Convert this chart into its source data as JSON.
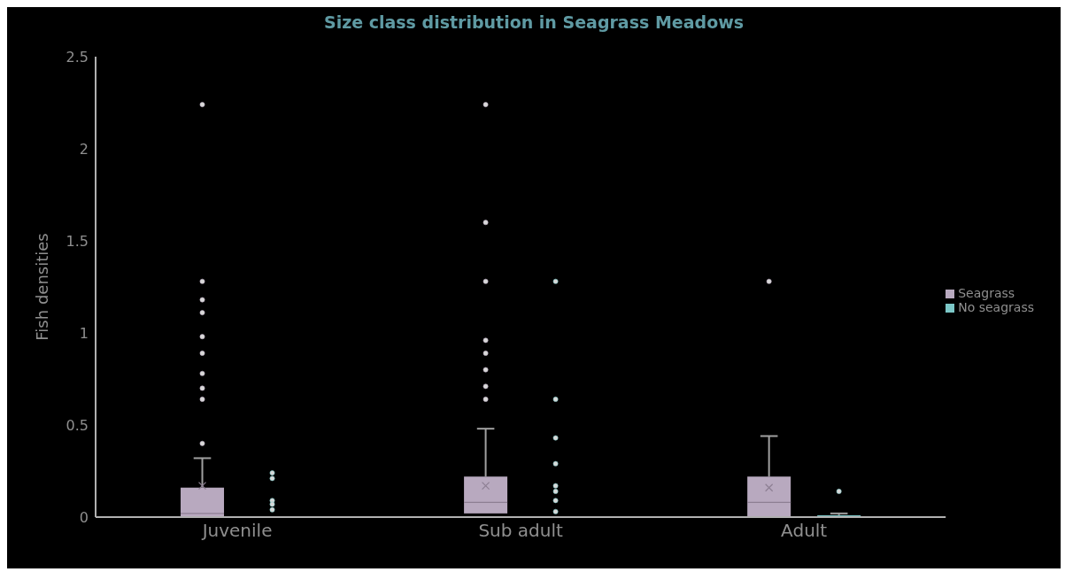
{
  "chart_data": {
    "type": "box",
    "title": "Size class distribution in Seagrass Meadows",
    "ylabel": "Fish densities",
    "categories": [
      "Juvenile",
      "Sub adult",
      "Adult"
    ],
    "ylim": [
      0,
      2.5
    ],
    "yticks": [
      0,
      0.5,
      1,
      1.5,
      2,
      2.5
    ],
    "grid": false,
    "legend": "right",
    "series": [
      {
        "name": "Seagrass",
        "color": "#b8a9bf",
        "boxes": [
          {
            "low": 0,
            "q1": 0,
            "median": 0.02,
            "q3": 0.16,
            "high": 0.32,
            "mean": 0.17,
            "outliers": [
              2.24,
              1.28,
              1.18,
              1.11,
              0.98,
              0.89,
              0.78,
              0.7,
              0.64,
              0.4
            ]
          },
          {
            "low": 0.02,
            "q1": 0.02,
            "median": 0.08,
            "q3": 0.22,
            "high": 0.48,
            "mean": 0.17,
            "outliers": [
              2.24,
              1.6,
              1.28,
              0.96,
              0.89,
              0.8,
              0.71,
              0.64
            ]
          },
          {
            "low": 0,
            "q1": 0,
            "median": 0.08,
            "q3": 0.22,
            "high": 0.44,
            "mean": 0.16,
            "outliers": [
              1.28
            ]
          }
        ]
      },
      {
        "name": "No seagrass",
        "color": "#7cc8c8",
        "boxes": [
          {
            "low": 0,
            "q1": 0,
            "median": 0,
            "q3": 0,
            "high": 0,
            "outliers": [
              0.24,
              0.21,
              0.09,
              0.07,
              0.04
            ]
          },
          {
            "low": 0,
            "q1": 0,
            "median": 0,
            "q3": 0,
            "high": 0,
            "outliers": [
              1.28,
              0.64,
              0.43,
              0.29,
              0.17,
              0.14,
              0.09,
              0.03
            ]
          },
          {
            "low": 0,
            "q1": 0,
            "median": 0,
            "q3": 0.01,
            "high": 0.02,
            "outliers": [
              0.14
            ]
          }
        ]
      }
    ]
  }
}
